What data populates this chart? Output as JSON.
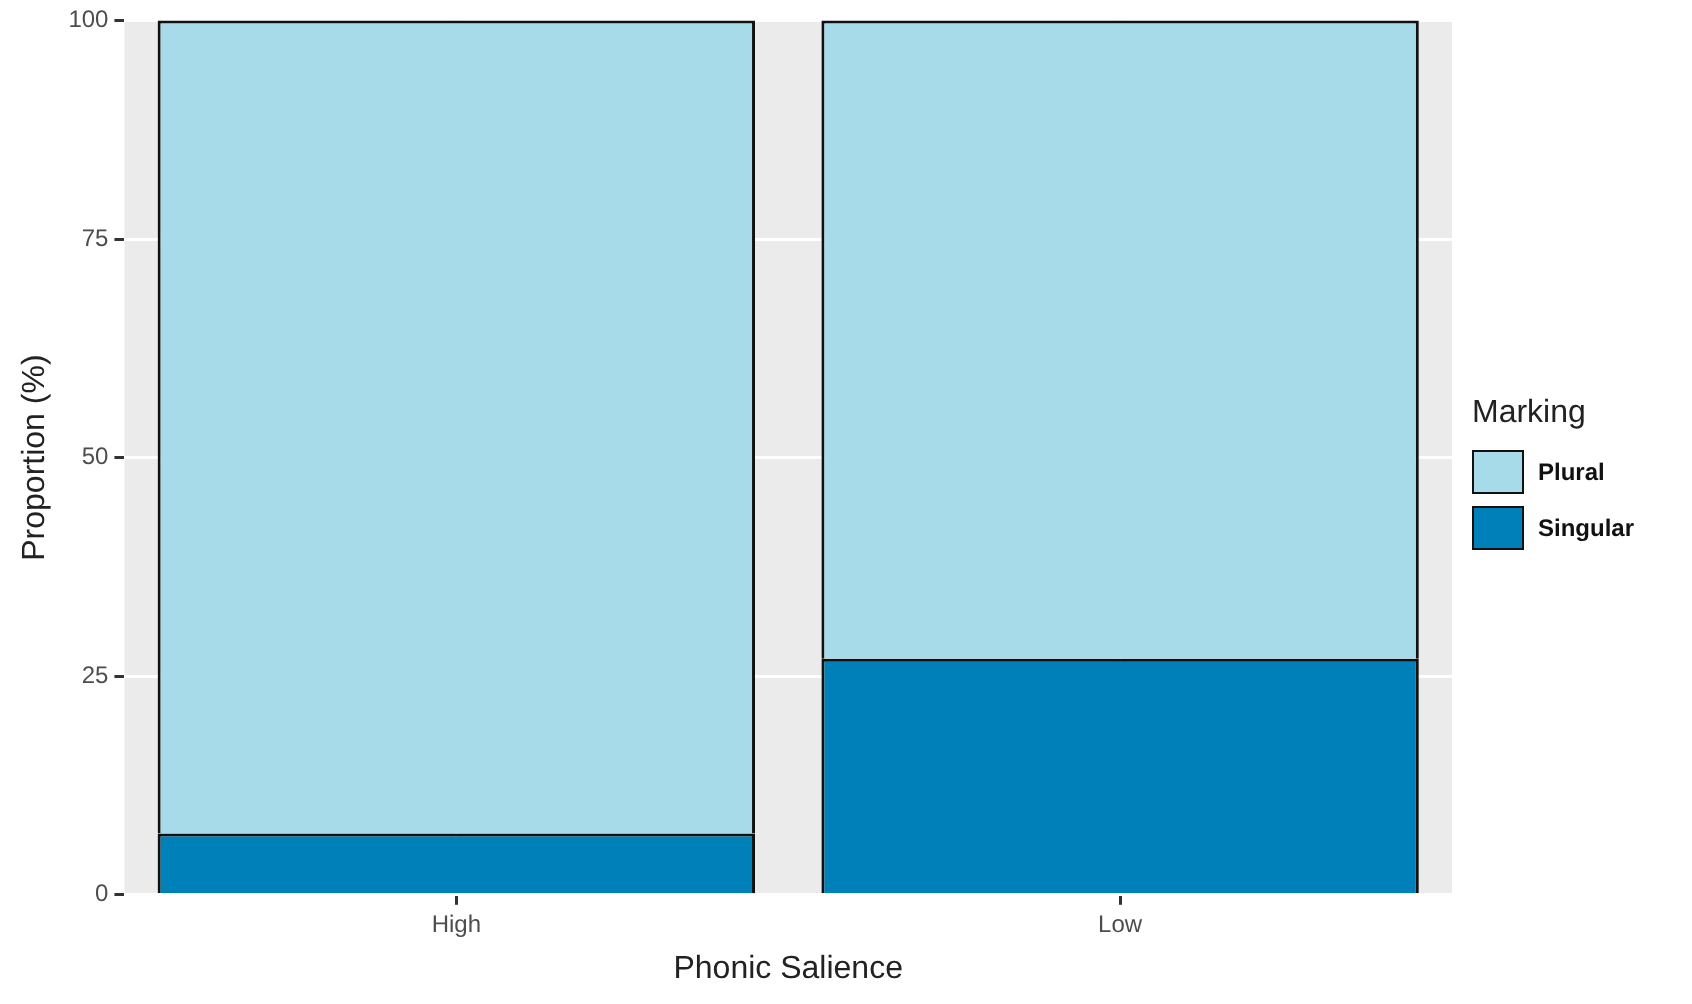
{
  "chart_data": {
    "type": "bar",
    "xlabel": "Phonic Salience",
    "ylabel": "Proportion (%)",
    "legend_title": "Marking",
    "categories": [
      "High",
      "Low"
    ],
    "stacked": true,
    "series": [
      {
        "name": "Singular",
        "color": "#0080b9",
        "values": [
          7,
          27
        ]
      },
      {
        "name": "Plural",
        "color": "#a8dbea",
        "values": [
          93,
          73
        ]
      }
    ],
    "ylim": [
      0,
      100
    ],
    "yticks": [
      0,
      25,
      50,
      75,
      100
    ],
    "grid": true,
    "legend": "right"
  }
}
